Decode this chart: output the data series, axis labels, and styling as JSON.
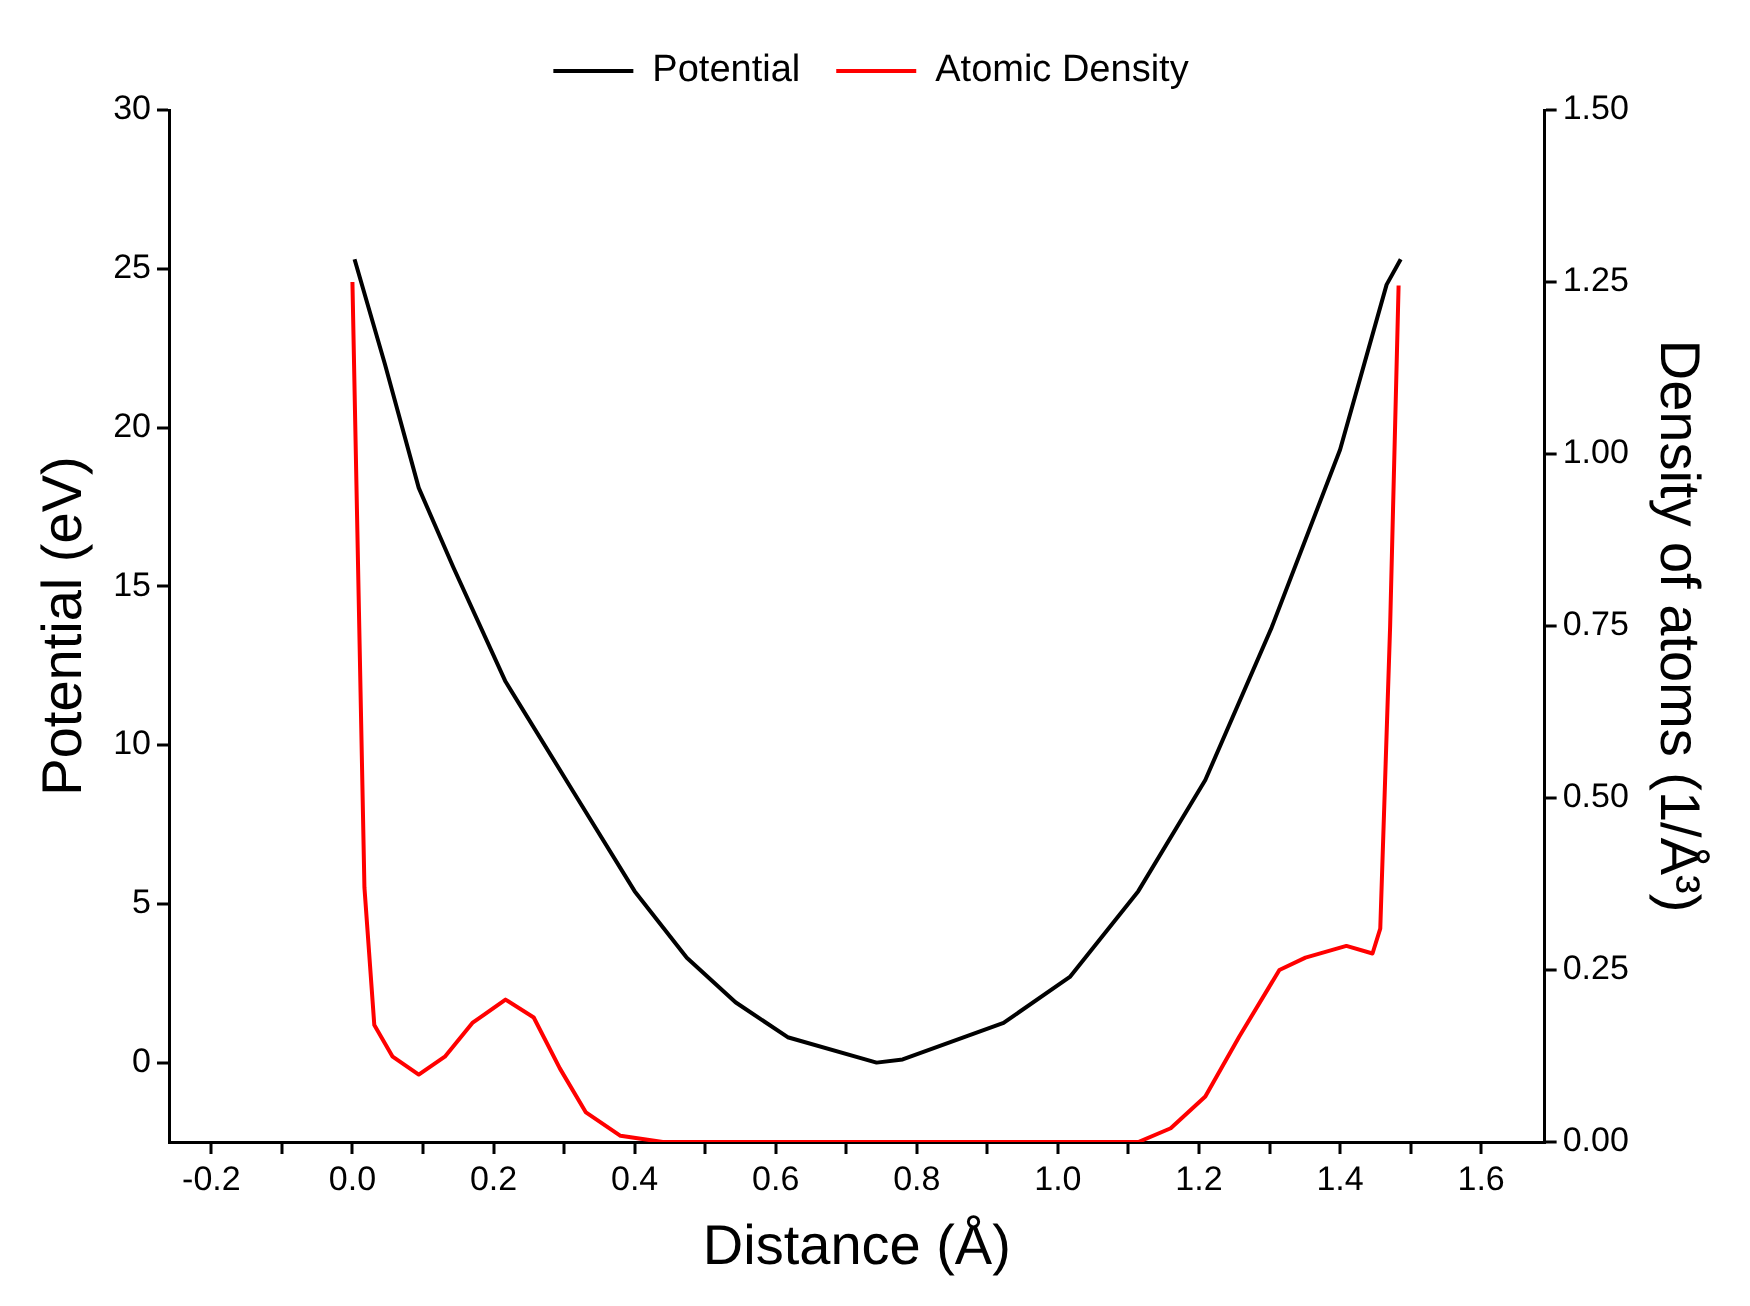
{
  "chart_data": {
    "type": "line",
    "xlabel": "Distance (Å)",
    "ylabel": "Potential (eV)",
    "y2label": "Density of atoms (1/Å³)",
    "legend": "top",
    "grid": false,
    "marker": "none",
    "line_style": "solid",
    "xlim": [
      -0.26,
      1.69
    ],
    "xticks": [
      {
        "value": -0.2,
        "label": "-0.2"
      },
      {
        "value": -0.1,
        "label": null
      },
      {
        "value": 0,
        "label": "0.0"
      },
      {
        "value": 0.1,
        "label": null
      },
      {
        "value": 0.2,
        "label": "0.2"
      },
      {
        "value": 0.3,
        "label": null
      },
      {
        "value": 0.4,
        "label": "0.4"
      },
      {
        "value": 0.5,
        "label": null
      },
      {
        "value": 0.6,
        "label": "0.6"
      },
      {
        "value": 0.7,
        "label": null
      },
      {
        "value": 0.8,
        "label": "0.8"
      },
      {
        "value": 0.9,
        "label": null
      },
      {
        "value": 1,
        "label": "1.0"
      },
      {
        "value": 1.1,
        "label": null
      },
      {
        "value": 1.2,
        "label": "1.2"
      },
      {
        "value": 1.3,
        "label": null
      },
      {
        "value": 1.4,
        "label": "1.4"
      },
      {
        "value": 1.5,
        "label": null
      },
      {
        "value": 1.6,
        "label": "1.6"
      }
    ],
    "ylim": [
      -2.5,
      30
    ],
    "yticks": [
      0,
      5,
      10,
      15,
      20,
      25,
      30
    ],
    "y2lim": [
      0,
      1.5
    ],
    "y2ticks": [
      {
        "value": 0,
        "label": "0.00"
      },
      {
        "value": 0.25,
        "label": "0.25"
      },
      {
        "value": 0.5,
        "label": "0.50"
      },
      {
        "value": 0.75,
        "label": "0.75"
      },
      {
        "value": 1,
        "label": "1.00"
      },
      {
        "value": 1.25,
        "label": "1.25"
      },
      {
        "value": 1.5,
        "label": "1.50"
      }
    ],
    "series": [
      {
        "name": "Potential",
        "color": "#000000",
        "x": [
          0.003,
          0.046,
          0.094,
          0.143,
          0.217,
          0.314,
          0.4,
          0.474,
          0.543,
          0.617,
          0.743,
          0.78,
          0.923,
          1.017,
          1.114,
          1.209,
          1.303,
          1.4,
          1.466,
          1.486
        ],
        "values": [
          25.3,
          22.0,
          18.1,
          15.6,
          12.0,
          8.5,
          5.4,
          3.3,
          1.9,
          0.8,
          0,
          0.1,
          1.25,
          2.7,
          5.4,
          8.9,
          13.7,
          19.3,
          24.5,
          25.3
        ]
      },
      {
        "name": "Atomic Density",
        "color": "#ff0000",
        "axis": "y2",
        "x": [
          0,
          0.017,
          0.031,
          0.057,
          0.094,
          0.131,
          0.17,
          0.217,
          0.257,
          0.294,
          0.331,
          0.38,
          0.44,
          1.08,
          1.114,
          1.16,
          1.209,
          1.257,
          1.314,
          1.351,
          1.409,
          1.446,
          1.457,
          1.471,
          1.483
        ],
        "values": [
          1.25,
          0.37,
          0.17,
          0.124,
          0.098,
          0.124,
          0.173,
          0.207,
          0.181,
          0.107,
          0.043,
          0.009,
          0,
          0,
          0,
          0.02,
          0.066,
          0.153,
          0.25,
          0.268,
          0.285,
          0.274,
          0.31,
          0.75,
          1.245
        ]
      }
    ]
  }
}
